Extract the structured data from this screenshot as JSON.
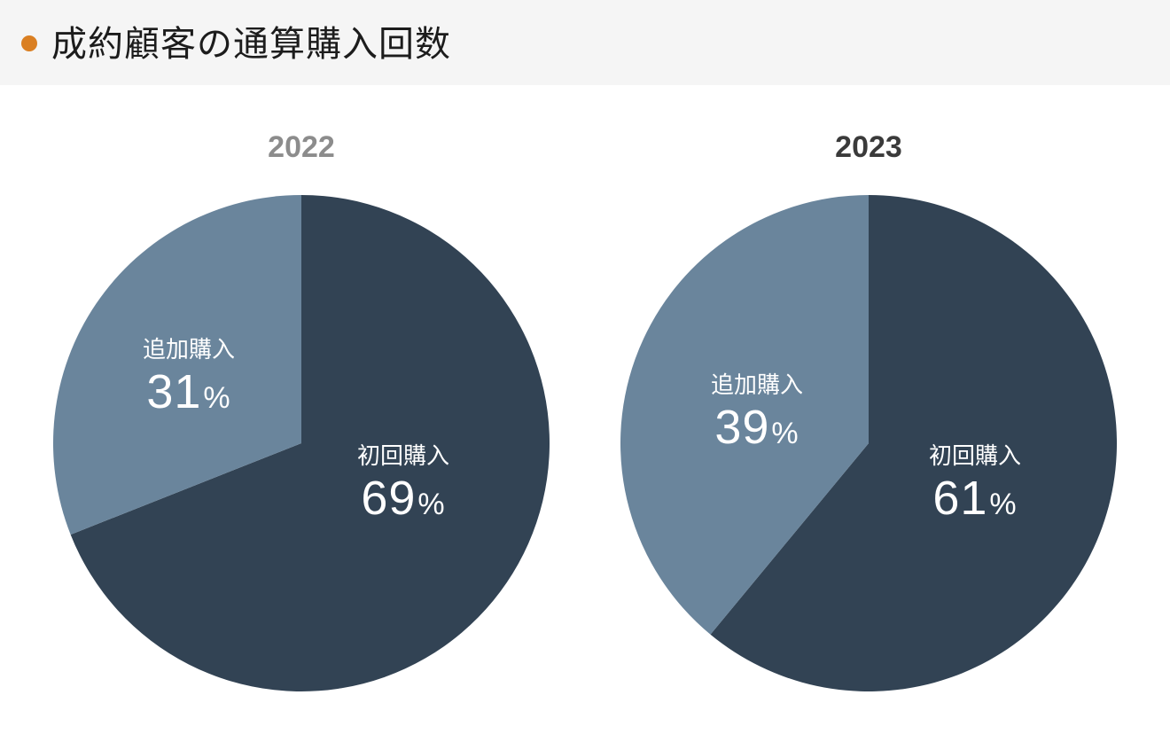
{
  "header": {
    "title": "成約顧客の通算購入回数",
    "bullet_color": "#da7f22"
  },
  "colors": {
    "primary": "#324354",
    "secondary": "#6a859c",
    "year_muted": "#8c8c8c",
    "year_active": "#3a3a3a"
  },
  "charts": [
    {
      "year": "2022",
      "slices": [
        {
          "label": "初回購入",
          "value": "69",
          "unit": "%"
        },
        {
          "label": "追加購入",
          "value": "31",
          "unit": "%"
        }
      ]
    },
    {
      "year": "2023",
      "slices": [
        {
          "label": "初回購入",
          "value": "61",
          "unit": "%"
        },
        {
          "label": "追加購入",
          "value": "39",
          "unit": "%"
        }
      ]
    }
  ],
  "chart_data": [
    {
      "type": "pie",
      "title": "2022",
      "categories": [
        "初回購入",
        "追加購入"
      ],
      "values": [
        69,
        31
      ],
      "unit": "%",
      "colors": [
        "#324354",
        "#6a859c"
      ],
      "start_angle": "12 o'clock, clockwise"
    },
    {
      "type": "pie",
      "title": "2023",
      "categories": [
        "初回購入",
        "追加購入"
      ],
      "values": [
        61,
        39
      ],
      "unit": "%",
      "colors": [
        "#324354",
        "#6a859c"
      ],
      "start_angle": "12 o'clock, clockwise"
    }
  ]
}
